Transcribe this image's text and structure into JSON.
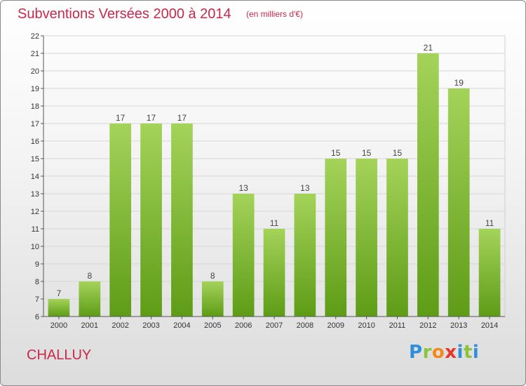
{
  "header": {
    "title": "Subventions Versées 2000 à 2014",
    "subtitle": "(en milliers d'€)"
  },
  "footer": {
    "city": "CHALLUY",
    "logo": "Proxiti"
  },
  "colors": {
    "bar_top": "#a4d35a",
    "bar_bottom": "#5e9c16",
    "title": "#c8284a"
  },
  "chart_data": {
    "type": "bar",
    "title": "Subventions Versées 2000 à 2014",
    "subtitle": "(en milliers d'€)",
    "xlabel": "",
    "ylabel": "",
    "categories": [
      "2000",
      "2001",
      "2002",
      "2003",
      "2004",
      "2005",
      "2006",
      "2007",
      "2008",
      "2009",
      "2010",
      "2011",
      "2012",
      "2013",
      "2014"
    ],
    "values": [
      7,
      8,
      17,
      17,
      17,
      8,
      13,
      11,
      13,
      15,
      15,
      15,
      21,
      19,
      11
    ],
    "ylim": [
      6,
      22
    ],
    "yticks": [
      6,
      7,
      8,
      9,
      10,
      11,
      12,
      13,
      14,
      15,
      16,
      17,
      18,
      19,
      20,
      21,
      22
    ],
    "grid": true,
    "legend": "none"
  }
}
